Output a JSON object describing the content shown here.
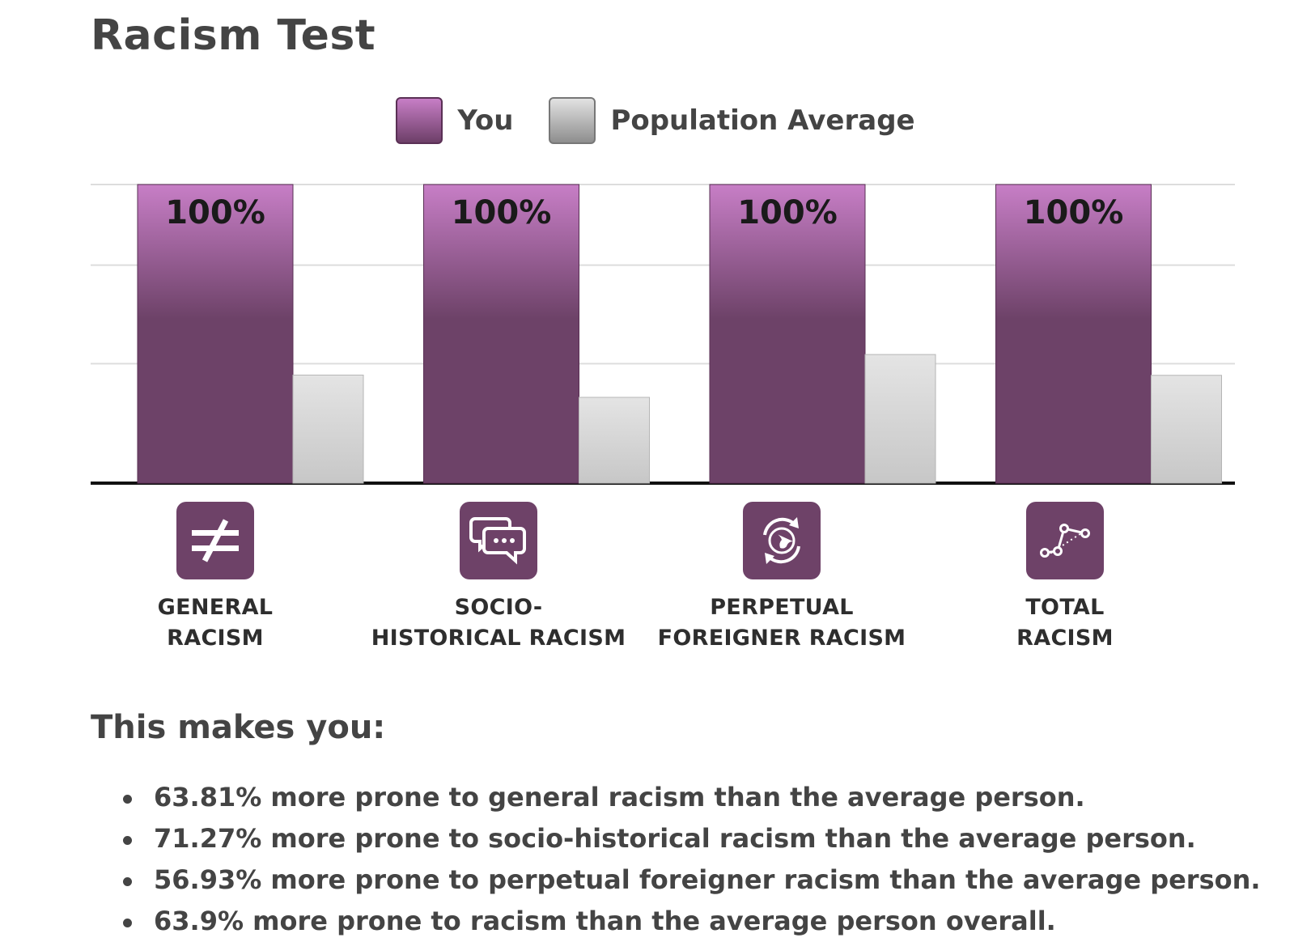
{
  "page": {
    "title": "Racism Test",
    "subtitle": "This makes you:",
    "bullets": [
      "63.81% more prone to general racism than the average person.",
      "71.27% more prone to socio-historical racism than the average person.",
      "56.93% more prone to perpetual foreigner racism than the average person.",
      "63.9% more prone to racism than the average person overall."
    ]
  },
  "chart_data": {
    "type": "bar",
    "categories": [
      "GENERAL RACISM",
      "SOCIO-HISTORICAL RACISM",
      "PERPETUAL FOREIGNER RACISM",
      "TOTAL RACISM"
    ],
    "category_lines": [
      [
        "GENERAL",
        "RACISM"
      ],
      [
        "SOCIO-",
        "HISTORICAL RACISM"
      ],
      [
        "PERPETUAL",
        "FOREIGNER RACISM"
      ],
      [
        "TOTAL",
        "RACISM"
      ]
    ],
    "category_icons": [
      "not-equal-icon",
      "speech-bubbles-icon",
      "globe-cycle-icon",
      "scatter-trend-icon"
    ],
    "series": [
      {
        "name": "You",
        "values": [
          100,
          100,
          100,
          100
        ],
        "value_labels": [
          "100%",
          "100%",
          "100%",
          "100%"
        ],
        "color_top": "#c77ec6",
        "color_bottom": "#6d4268"
      },
      {
        "name": "Population Average",
        "values": [
          36.19,
          28.73,
          43.07,
          36.1
        ],
        "color_top": "#e6e6e6",
        "color_bottom": "#c9c9c9"
      }
    ],
    "ylim": [
      0,
      100
    ],
    "grid": true,
    "legend_position": "top-center",
    "accent_color": "#6e4268"
  }
}
